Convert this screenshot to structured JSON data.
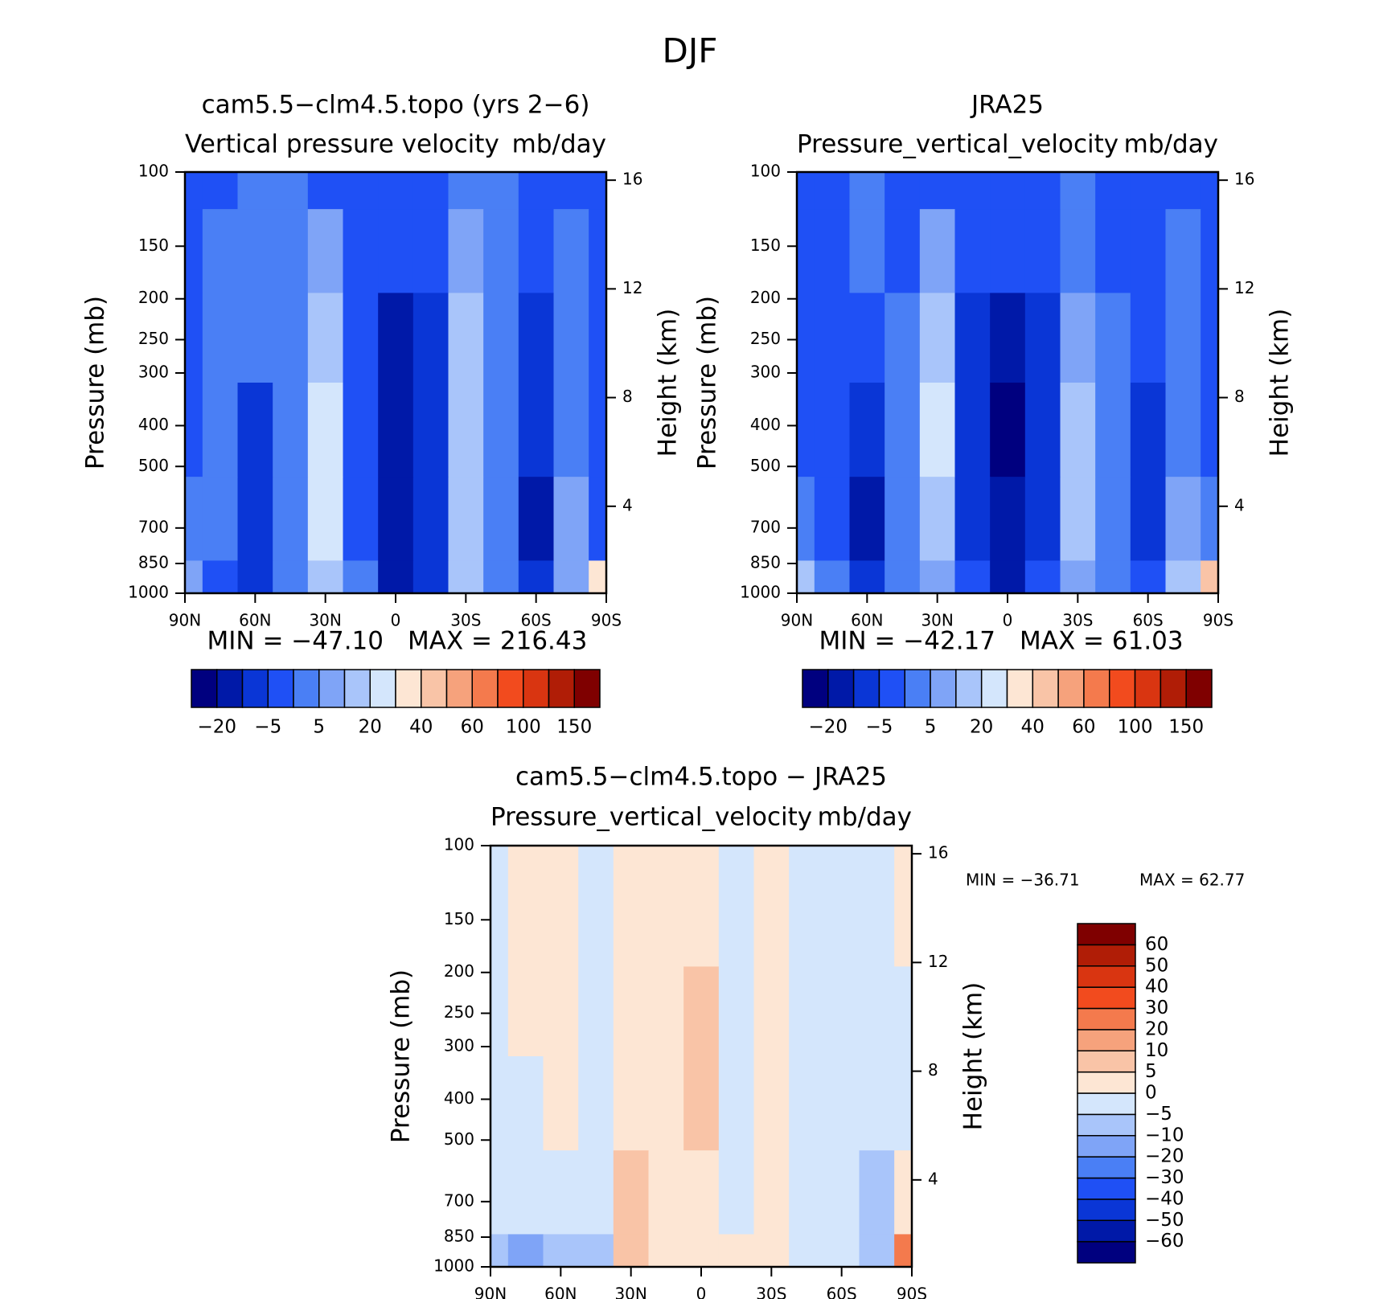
{
  "page_title": "DJF",
  "chart_data": [
    {
      "type": "contour",
      "title": "cam5.5−clm4.5.topo (yrs 2−6)",
      "subtitle": "Vertical pressure velocity",
      "units": "mb/day",
      "y_label": "Pressure (mb)",
      "y2_label": "Height (km)",
      "min_text": "MIN = −47.10",
      "max_text": "MAX = 216.43",
      "x": [
        90,
        75,
        60,
        45,
        30,
        15,
        0,
        -15,
        -30,
        -45,
        -60,
        -75,
        -90
      ],
      "y": [
        100,
        150,
        250,
        400,
        700,
        1000
      ],
      "z": [
        [
          -3,
          -3,
          2,
          2,
          -3,
          -3,
          -3,
          -3,
          2,
          2,
          -3,
          -3,
          -3
        ],
        [
          -3,
          2,
          2,
          2,
          8,
          -3,
          -3,
          -3,
          8,
          2,
          -3,
          2,
          -3
        ],
        [
          -3,
          2,
          2,
          2,
          15,
          -3,
          -12,
          -8,
          12,
          2,
          -8,
          2,
          -3
        ],
        [
          -3,
          2,
          -8,
          2,
          25,
          -3,
          -15,
          -8,
          15,
          2,
          -8,
          2,
          -3
        ],
        [
          2,
          2,
          -8,
          2,
          25,
          -3,
          -20,
          -8,
          15,
          2,
          -12,
          8,
          -3
        ],
        [
          8,
          -3,
          -8,
          2,
          15,
          2,
          -15,
          -8,
          12,
          2,
          -8,
          8,
          30
        ]
      ],
      "xlim": [
        90,
        -90
      ],
      "xticks": [
        {
          "value": 90,
          "label": "90N"
        },
        {
          "value": 60,
          "label": "60N"
        },
        {
          "value": 30,
          "label": "30N"
        },
        0,
        {
          "value": -30,
          "label": "30S"
        },
        {
          "value": -60,
          "label": "60S"
        },
        {
          "value": -90,
          "label": "90S"
        }
      ],
      "ylim": [
        1000,
        100
      ],
      "yticks": [
        100,
        150,
        200,
        250,
        300,
        400,
        500,
        700,
        850,
        1000
      ],
      "log_y": true,
      "y2lim": [
        0.8,
        16.3
      ],
      "y2ticks": [
        4,
        8,
        12,
        16
      ],
      "colorbar": "horizontal",
      "levels": [
        -20,
        -10,
        -5,
        0,
        5,
        10,
        20,
        30,
        40,
        50,
        60,
        80,
        100,
        120,
        150
      ],
      "cticks": [
        {
          "value": -20,
          "label": "−20"
        },
        {
          "value": -5,
          "label": "−5"
        },
        5,
        20,
        40,
        60,
        100,
        150
      ],
      "colors": [
        "#00007f",
        "#0019a8",
        "#0a36d6",
        "#1f50f5",
        "#4a7ff5",
        "#7fa4f7",
        "#a9c5fa",
        "#d4e6fc",
        "#fde6d4",
        "#f9c4a7",
        "#f6a27c",
        "#f47a4d",
        "#f24b1e",
        "#d93511",
        "#b01d06",
        "#7f0000"
      ]
    },
    {
      "type": "contour",
      "title": "JRA25",
      "subtitle": "Pressure_vertical_velocity",
      "units": "mb/day",
      "y_label": "Pressure (mb)",
      "y2_label": "Height (km)",
      "min_text": "MIN = −42.17",
      "max_text": "MAX =   61.03",
      "x": [
        90,
        75,
        60,
        45,
        30,
        15,
        0,
        -15,
        -30,
        -45,
        -60,
        -75,
        -90
      ],
      "y": [
        100,
        150,
        250,
        400,
        700,
        1000
      ],
      "z": [
        [
          -3,
          -3,
          2,
          -3,
          -3,
          -3,
          -3,
          -3,
          2,
          -3,
          -3,
          -3,
          -3
        ],
        [
          -3,
          -3,
          2,
          -3,
          8,
          -3,
          -3,
          -3,
          2,
          -3,
          -3,
          2,
          -3
        ],
        [
          -3,
          -3,
          -3,
          2,
          15,
          -8,
          -15,
          -8,
          8,
          2,
          -3,
          2,
          -3
        ],
        [
          -3,
          -3,
          -8,
          2,
          25,
          -8,
          -25,
          -8,
          12,
          2,
          -8,
          2,
          -3
        ],
        [
          2,
          -3,
          -12,
          2,
          15,
          -8,
          -20,
          -8,
          12,
          2,
          -8,
          8,
          2
        ],
        [
          12,
          2,
          -8,
          2,
          8,
          -3,
          -12,
          -3,
          8,
          2,
          -3,
          15,
          45
        ]
      ],
      "xlim": [
        90,
        -90
      ],
      "xticks": [
        {
          "value": 90,
          "label": "90N"
        },
        {
          "value": 60,
          "label": "60N"
        },
        {
          "value": 30,
          "label": "30N"
        },
        0,
        {
          "value": -30,
          "label": "30S"
        },
        {
          "value": -60,
          "label": "60S"
        },
        {
          "value": -90,
          "label": "90S"
        }
      ],
      "ylim": [
        1000,
        100
      ],
      "yticks": [
        100,
        150,
        200,
        250,
        300,
        400,
        500,
        700,
        850,
        1000
      ],
      "log_y": true,
      "y2lim": [
        0.8,
        16.3
      ],
      "y2ticks": [
        4,
        8,
        12,
        16
      ],
      "colorbar": "horizontal",
      "levels": [
        -20,
        -10,
        -5,
        0,
        5,
        10,
        20,
        30,
        40,
        50,
        60,
        80,
        100,
        120,
        150
      ],
      "cticks": [
        {
          "value": -20,
          "label": "−20"
        },
        {
          "value": -5,
          "label": "−5"
        },
        5,
        20,
        40,
        60,
        100,
        150
      ],
      "colors": [
        "#00007f",
        "#0019a8",
        "#0a36d6",
        "#1f50f5",
        "#4a7ff5",
        "#7fa4f7",
        "#a9c5fa",
        "#d4e6fc",
        "#fde6d4",
        "#f9c4a7",
        "#f6a27c",
        "#f47a4d",
        "#f24b1e",
        "#d93511",
        "#b01d06",
        "#7f0000"
      ]
    },
    {
      "type": "contour",
      "title": "cam5.5−clm4.5.topo − JRA25",
      "subtitle": "Pressure_vertical_velocity",
      "units": "mb/day",
      "y_label": "Pressure (mb)",
      "y2_label": "Height (km)",
      "min_text": "MIN = −36.71",
      "max_text": "MAX =   62.77",
      "x": [
        90,
        75,
        60,
        45,
        30,
        15,
        0,
        -15,
        -30,
        -45,
        -60,
        -75,
        -90
      ],
      "y": [
        100,
        150,
        250,
        400,
        700,
        1000
      ],
      "z": [
        [
          -3,
          2,
          2,
          -3,
          3,
          3,
          3,
          -3,
          3,
          -3,
          -3,
          -3,
          3
        ],
        [
          -3,
          2,
          2,
          -3,
          3,
          3,
          3,
          -3,
          3,
          -3,
          -3,
          -3,
          3
        ],
        [
          -3,
          2,
          2,
          -3,
          3,
          3,
          7,
          -3,
          3,
          -3,
          -3,
          -3,
          -3
        ],
        [
          -3,
          -3,
          2,
          -3,
          3,
          3,
          7,
          -3,
          3,
          -3,
          -3,
          -3,
          -3
        ],
        [
          -3,
          -3,
          -3,
          -3,
          7,
          3,
          3,
          -3,
          3,
          -3,
          -3,
          -8,
          3
        ],
        [
          -8,
          -12,
          -8,
          -8,
          7,
          3,
          3,
          3,
          3,
          -3,
          -3,
          -8,
          25
        ]
      ],
      "xlim": [
        90,
        -90
      ],
      "xticks": [
        {
          "value": 90,
          "label": "90N"
        },
        {
          "value": 60,
          "label": "60N"
        },
        {
          "value": 30,
          "label": "30N"
        },
        0,
        {
          "value": -30,
          "label": "30S"
        },
        {
          "value": -60,
          "label": "60S"
        },
        {
          "value": -90,
          "label": "90S"
        }
      ],
      "ylim": [
        1000,
        100
      ],
      "yticks": [
        100,
        150,
        200,
        250,
        300,
        400,
        500,
        700,
        850,
        1000
      ],
      "log_y": true,
      "y2lim": [
        0.8,
        16.3
      ],
      "y2ticks": [
        4,
        8,
        12,
        16
      ],
      "colorbar": "vertical",
      "levels": [
        -60,
        -50,
        -40,
        -30,
        -20,
        -10,
        -5,
        0,
        5,
        10,
        20,
        30,
        40,
        50,
        60
      ],
      "cticks": [
        {
          "value": -60,
          "label": "−60"
        },
        {
          "value": -50,
          "label": "−50"
        },
        {
          "value": -40,
          "label": "−40"
        },
        {
          "value": -30,
          "label": "−30"
        },
        {
          "value": -20,
          "label": "−20"
        },
        {
          "value": -10,
          "label": "−10"
        },
        {
          "value": -5,
          "label": "−5"
        },
        0,
        5,
        10,
        20,
        30,
        40,
        50,
        60
      ],
      "colors": [
        "#00007f",
        "#0019a8",
        "#0a36d6",
        "#1f50f5",
        "#4a7ff5",
        "#7fa4f7",
        "#a9c5fa",
        "#d4e6fc",
        "#fde6d4",
        "#f9c4a7",
        "#f6a27c",
        "#f47a4d",
        "#f24b1e",
        "#d93511",
        "#b01d06",
        "#7f0000"
      ]
    }
  ]
}
